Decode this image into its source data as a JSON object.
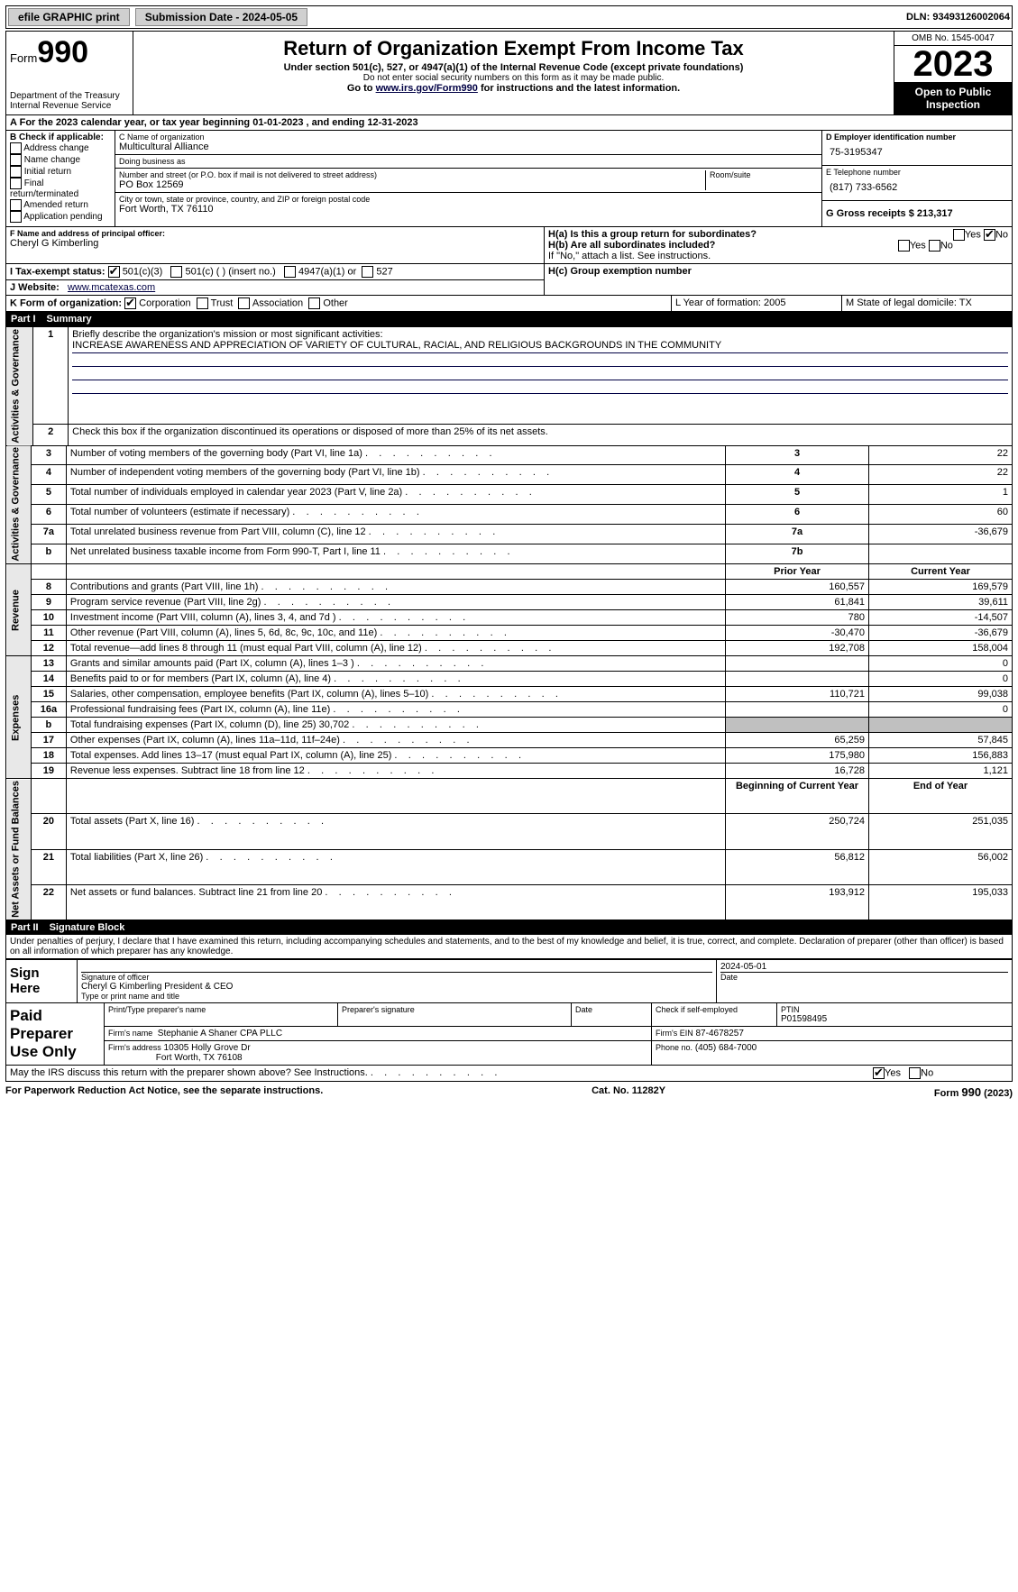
{
  "topbar": {
    "efile": "efile GRAPHIC print",
    "submission_label": "Submission Date - 2024-05-05",
    "dln_label": "DLN: 93493126002064"
  },
  "header": {
    "form_label": "Form",
    "form_number": "990",
    "dept": "Department of the Treasury Internal Revenue Service",
    "title": "Return of Organization Exempt From Income Tax",
    "sub1": "Under section 501(c), 527, or 4947(a)(1) of the Internal Revenue Code (except private foundations)",
    "sub2": "Do not enter social security numbers on this form as it may be made public.",
    "sub3_pre": "Go to ",
    "sub3_link": "www.irs.gov/Form990",
    "sub3_post": " for instructions and the latest information.",
    "omb": "OMB No. 1545-0047",
    "year": "2023",
    "inspect": "Open to Public Inspection"
  },
  "A": {
    "text": "For the 2023 calendar year, or tax year beginning 01-01-2023    , and ending 12-31-2023"
  },
  "B": {
    "label": "B Check if applicable:",
    "items": [
      "Address change",
      "Name change",
      "Initial return",
      "Final return/terminated",
      "Amended return",
      "Application pending"
    ]
  },
  "C": {
    "name_label": "C Name of organization",
    "name": "Multicultural Alliance",
    "dba_label": "Doing business as",
    "dba": "",
    "street_label": "Number and street (or P.O. box if mail is not delivered to street address)",
    "street": "PO Box 12569",
    "room_label": "Room/suite",
    "city_label": "City or town, state or province, country, and ZIP or foreign postal code",
    "city": "Fort Worth, TX  76110"
  },
  "D": {
    "ein_label": "D Employer identification number",
    "ein": "75-3195347",
    "phone_label": "E Telephone number",
    "phone": "(817) 733-6562",
    "gross_label": "G Gross receipts $ 213,317"
  },
  "F": {
    "label": "F  Name and address of principal officer:",
    "name": "Cheryl G Kimberling"
  },
  "H": {
    "a": "H(a)  Is this a group return for subordinates?",
    "b": "H(b)  Are all subordinates included?",
    "note": "If \"No,\" attach a list. See instructions.",
    "c": "H(c)  Group exemption number",
    "yes": "Yes",
    "no": "No"
  },
  "I": {
    "label": "I   Tax-exempt status:",
    "c3": "501(c)(3)",
    "c": "501(c) (  ) (insert no.)",
    "a1": "4947(a)(1) or",
    "527": "527"
  },
  "J": {
    "label": "J   Website:",
    "value": "www.mcatexas.com"
  },
  "K": {
    "label": "K Form of organization:",
    "opts": [
      "Corporation",
      "Trust",
      "Association",
      "Other"
    ]
  },
  "L": {
    "label": "L Year of formation: 2005"
  },
  "M": {
    "label": "M State of legal domicile: TX"
  },
  "part1": {
    "title": "Part I",
    "name": "Summary",
    "line1": "Briefly describe the organization's mission or most significant activities:",
    "mission": "INCREASE AWARENESS AND APPRECIATION OF VARIETY OF CULTURAL, RACIAL, AND RELIGIOUS BACKGROUNDS IN THE COMMUNITY",
    "line2": "Check this box      if the organization discontinued its operations or disposed of more than 25% of its net assets.",
    "gov_label": "Activities & Governance",
    "rev_label": "Revenue",
    "exp_label": "Expenses",
    "net_label": "Net Assets or Fund Balances",
    "rows_gov": [
      {
        "n": "3",
        "t": "Number of voting members of the governing body (Part VI, line 1a)",
        "box": "3",
        "v": "22"
      },
      {
        "n": "4",
        "t": "Number of independent voting members of the governing body (Part VI, line 1b)",
        "box": "4",
        "v": "22"
      },
      {
        "n": "5",
        "t": "Total number of individuals employed in calendar year 2023 (Part V, line 2a)",
        "box": "5",
        "v": "1"
      },
      {
        "n": "6",
        "t": "Total number of volunteers (estimate if necessary)",
        "box": "6",
        "v": "60"
      },
      {
        "n": "7a",
        "t": "Total unrelated business revenue from Part VIII, column (C), line 12",
        "box": "7a",
        "v": "-36,679"
      },
      {
        "n": "b",
        "t": "Net unrelated business taxable income from Form 990-T, Part I, line 11",
        "box": "7b",
        "v": ""
      }
    ],
    "col_prior": "Prior Year",
    "col_current": "Current Year",
    "rows_rev": [
      {
        "n": "8",
        "t": "Contributions and grants (Part VIII, line 1h)",
        "p": "160,557",
        "c": "169,579"
      },
      {
        "n": "9",
        "t": "Program service revenue (Part VIII, line 2g)",
        "p": "61,841",
        "c": "39,611"
      },
      {
        "n": "10",
        "t": "Investment income (Part VIII, column (A), lines 3, 4, and 7d )",
        "p": "780",
        "c": "-14,507"
      },
      {
        "n": "11",
        "t": "Other revenue (Part VIII, column (A), lines 5, 6d, 8c, 9c, 10c, and 11e)",
        "p": "-30,470",
        "c": "-36,679"
      },
      {
        "n": "12",
        "t": "Total revenue—add lines 8 through 11 (must equal Part VIII, column (A), line 12)",
        "p": "192,708",
        "c": "158,004"
      }
    ],
    "rows_exp": [
      {
        "n": "13",
        "t": "Grants and similar amounts paid (Part IX, column (A), lines 1–3 )",
        "p": "",
        "c": "0"
      },
      {
        "n": "14",
        "t": "Benefits paid to or for members (Part IX, column (A), line 4)",
        "p": "",
        "c": "0"
      },
      {
        "n": "15",
        "t": "Salaries, other compensation, employee benefits (Part IX, column (A), lines 5–10)",
        "p": "110,721",
        "c": "99,038"
      },
      {
        "n": "16a",
        "t": "Professional fundraising fees (Part IX, column (A), line 11e)",
        "p": "",
        "c": "0"
      },
      {
        "n": "b",
        "t": "Total fundraising expenses (Part IX, column (D), line 25) 30,702",
        "p": "GREY",
        "c": "GREY"
      },
      {
        "n": "17",
        "t": "Other expenses (Part IX, column (A), lines 11a–11d, 11f–24e)",
        "p": "65,259",
        "c": "57,845"
      },
      {
        "n": "18",
        "t": "Total expenses. Add lines 13–17 (must equal Part IX, column (A), line 25)",
        "p": "175,980",
        "c": "156,883"
      },
      {
        "n": "19",
        "t": "Revenue less expenses. Subtract line 18 from line 12",
        "p": "16,728",
        "c": "1,121"
      }
    ],
    "col_begin": "Beginning of Current Year",
    "col_end": "End of Year",
    "rows_net": [
      {
        "n": "20",
        "t": "Total assets (Part X, line 16)",
        "p": "250,724",
        "c": "251,035"
      },
      {
        "n": "21",
        "t": "Total liabilities (Part X, line 26)",
        "p": "56,812",
        "c": "56,002"
      },
      {
        "n": "22",
        "t": "Net assets or fund balances. Subtract line 21 from line 20",
        "p": "193,912",
        "c": "195,033"
      }
    ]
  },
  "part2": {
    "title": "Part II",
    "name": "Signature Block",
    "declaration": "Under penalties of perjury, I declare that I have examined this return, including accompanying schedules and statements, and to the best of my knowledge and belief, it is true, correct, and complete. Declaration of preparer (other than officer) is based on all information of which preparer has any knowledge.",
    "sign_here": "Sign Here",
    "sig_date": "2024-05-01",
    "sig_officer_label": "Signature of officer",
    "officer_name": "Cheryl G Kimberling President & CEO",
    "type_label": "Type or print name and title",
    "date_label": "Date",
    "paid": "Paid Preparer Use Only",
    "prep_name_label": "Print/Type preparer's name",
    "prep_sig_label": "Preparer's signature",
    "self_emp": "Check       if self-employed",
    "ptin_label": "PTIN",
    "ptin": "P01598495",
    "firm_name_label": "Firm's name",
    "firm_name": "Stephanie A Shaner CPA PLLC",
    "firm_ein_label": "Firm's EIN",
    "firm_ein": "87-4678257",
    "firm_addr_label": "Firm's address",
    "firm_addr1": "10305 Holly Grove Dr",
    "firm_addr2": "Fort Worth, TX  76108",
    "firm_phone_label": "Phone no.",
    "firm_phone": "(405) 684-7000",
    "discuss": "May the IRS discuss this return with the preparer shown above? See Instructions.",
    "yes": "Yes",
    "no": "No"
  },
  "footer": {
    "pra": "For Paperwork Reduction Act Notice, see the separate instructions.",
    "cat": "Cat. No. 11282Y",
    "form": "Form 990 (2023)"
  }
}
